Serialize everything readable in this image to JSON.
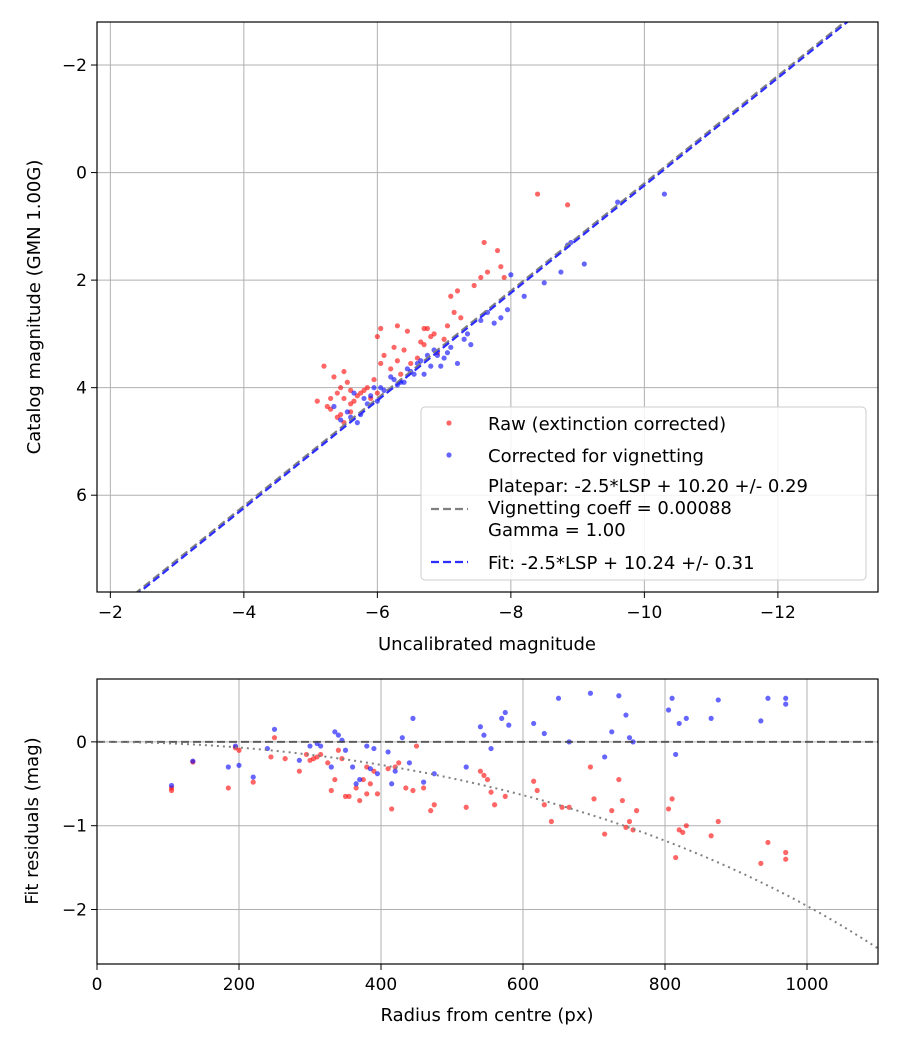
{
  "chart_data": [
    {
      "type": "scatter",
      "xlabel": "Uncalibrated magnitude",
      "ylabel": "Catalog magnitude (GMN 1.00G)",
      "xlim": [
        -1.8,
        -13.5
      ],
      "ylim": [
        7.8,
        -2.8
      ],
      "x_inverted": true,
      "y_inverted": true,
      "xticks": [
        -2,
        -4,
        -6,
        -8,
        -10,
        -12
      ],
      "xtick_labels": [
        "−2",
        "−4",
        "−6",
        "−8",
        "−10",
        "−12"
      ],
      "yticks": [
        -2,
        0,
        2,
        4,
        6
      ],
      "ytick_labels": [
        "−2",
        "0",
        "2",
        "4",
        "6"
      ],
      "grid": true,
      "legend_position": "lower-right",
      "series": [
        {
          "name": "Raw (extinction corrected)",
          "kind": "scatter",
          "color": "#ff0000",
          "x": [
            -5.1,
            -5.2,
            -5.25,
            -5.3,
            -5.35,
            -5.4,
            -5.45,
            -5.5,
            -5.55,
            -5.6,
            -5.3,
            -5.45,
            -5.6,
            -5.7,
            -5.8,
            -5.9,
            -6.0,
            -5.5,
            -5.65,
            -5.75,
            -5.85,
            -5.95,
            -6.05,
            -6.1,
            -6.2,
            -6.3,
            -6.35,
            -6.4,
            -6.5,
            -6.6,
            -6.7,
            -6.8,
            -6.9,
            -7.0,
            -6.05,
            -6.25,
            -6.45,
            -6.65,
            -6.75,
            -6.85,
            -7.05,
            -7.15,
            -7.25,
            -7.45,
            -7.55,
            -7.6,
            -7.65,
            -7.8,
            -7.85,
            -8.4,
            -8.85,
            -7.9,
            -7.1,
            -7.2,
            -6.0,
            -5.5,
            -5.4,
            -5.6,
            -6.3,
            -6.7
          ],
          "y": [
            4.25,
            3.6,
            4.35,
            4.2,
            3.8,
            4.1,
            4.0,
            4.2,
            3.9,
            4.05,
            4.4,
            4.5,
            4.3,
            4.15,
            4.05,
            4.2,
            4.1,
            3.7,
            4.25,
            4.1,
            4.0,
            3.85,
            3.55,
            3.4,
            3.65,
            3.5,
            3.75,
            3.3,
            3.55,
            3.45,
            3.2,
            3.05,
            3.35,
            3.1,
            2.9,
            3.25,
            2.95,
            3.15,
            2.9,
            3.0,
            2.85,
            2.6,
            2.7,
            2.1,
            1.95,
            1.3,
            1.85,
            1.45,
            1.75,
            0.4,
            0.6,
            1.95,
            2.3,
            2.2,
            3.05,
            4.65,
            4.55,
            4.45,
            2.85,
            2.9
          ]
        },
        {
          "name": "Corrected for vignetting",
          "kind": "scatter",
          "color": "#0000ff",
          "x": [
            -5.35,
            -5.45,
            -5.55,
            -5.65,
            -5.7,
            -5.75,
            -5.8,
            -5.85,
            -5.9,
            -5.95,
            -6.0,
            -6.1,
            -6.2,
            -6.3,
            -6.4,
            -6.5,
            -6.6,
            -6.7,
            -6.8,
            -6.9,
            -7.0,
            -7.1,
            -7.2,
            -7.3,
            -7.4,
            -7.55,
            -7.65,
            -7.75,
            -7.85,
            -8.0,
            -8.2,
            -8.5,
            -8.75,
            -8.9,
            -9.1,
            -9.6,
            -10.3,
            -6.25,
            -6.45,
            -6.65,
            -6.85,
            -7.05,
            -5.6,
            -6.05,
            -6.35,
            -6.55,
            -6.75,
            -6.95,
            -7.35,
            -7.95,
            -8.85
          ],
          "y": [
            4.35,
            4.6,
            4.45,
            4.1,
            4.65,
            4.5,
            4.2,
            4.3,
            4.15,
            4.0,
            4.25,
            4.05,
            3.8,
            3.95,
            3.9,
            3.7,
            3.55,
            3.75,
            3.6,
            3.4,
            3.45,
            3.25,
            3.55,
            3.1,
            3.2,
            2.75,
            2.6,
            2.8,
            2.7,
            1.9,
            2.3,
            2.05,
            1.85,
            1.3,
            1.7,
            0.55,
            0.4,
            3.85,
            3.65,
            3.5,
            3.3,
            3.35,
            4.55,
            4.0,
            3.9,
            3.75,
            3.4,
            3.6,
            3.0,
            2.55,
            1.35
          ]
        },
        {
          "name": "Platepar: -2.5*LSP + 10.20 +/- 0.29\nVignetting coeff = 0.00088\nGamma = 1.00",
          "kind": "line",
          "color": "#808080",
          "dashed": true,
          "slope": -2.5,
          "intercept": 10.2
        },
        {
          "name": "Fit: -2.5*LSP + 10.24 +/- 0.31",
          "kind": "line",
          "color": "#2d2dff",
          "dashed": true,
          "slope": -2.5,
          "intercept": 10.24
        }
      ]
    },
    {
      "type": "scatter",
      "xlabel": "Radius from centre (px)",
      "ylabel": "Fit residuals (mag)",
      "xlim": [
        0,
        1100
      ],
      "ylim": [
        -2.65,
        0.75
      ],
      "xticks": [
        0,
        200,
        400,
        600,
        800,
        1000
      ],
      "xtick_labels": [
        "0",
        "200",
        "400",
        "600",
        "800",
        "1000"
      ],
      "yticks": [
        0,
        -1,
        -2
      ],
      "ytick_labels": [
        "0",
        "−1",
        "−2"
      ],
      "grid": true,
      "series": [
        {
          "kind": "scatter",
          "color": "#ff0000",
          "x": [
            105,
            105,
            135,
            185,
            195,
            200,
            220,
            245,
            250,
            285,
            300,
            305,
            310,
            315,
            325,
            330,
            335,
            340,
            345,
            350,
            365,
            370,
            375,
            380,
            385,
            390,
            395,
            410,
            415,
            420,
            425,
            435,
            445,
            450,
            460,
            470,
            475,
            520,
            540,
            545,
            550,
            555,
            560,
            575,
            615,
            620,
            630,
            640,
            655,
            665,
            695,
            700,
            715,
            725,
            735,
            740,
            745,
            750,
            755,
            760,
            805,
            810,
            815,
            820,
            825,
            830,
            865,
            875,
            935,
            945,
            970,
            970,
            265,
            295,
            355,
            380
          ],
          "y": [
            -0.55,
            -0.58,
            -0.24,
            -0.55,
            -0.07,
            -0.1,
            -0.48,
            -0.18,
            0.05,
            -0.35,
            -0.22,
            -0.2,
            -0.18,
            -0.15,
            -0.25,
            -0.58,
            -0.45,
            -0.1,
            -0.2,
            -0.65,
            -0.55,
            -0.7,
            -0.45,
            -0.62,
            -0.5,
            -0.35,
            -0.62,
            -0.32,
            -0.8,
            -0.3,
            -0.25,
            -0.55,
            -0.58,
            -0.05,
            -0.55,
            -0.82,
            -0.75,
            -0.78,
            -0.35,
            -0.4,
            -0.45,
            -0.6,
            -0.75,
            -0.65,
            -0.47,
            -0.58,
            -0.75,
            -0.95,
            -0.78,
            -0.78,
            -0.3,
            -0.68,
            -1.1,
            -0.82,
            -0.45,
            -0.7,
            -1.02,
            -0.95,
            -1.05,
            -0.82,
            -0.8,
            -0.68,
            -1.38,
            -1.05,
            -1.08,
            -1.0,
            -1.12,
            -0.95,
            -1.45,
            -1.2,
            -1.32,
            -1.4,
            -0.2,
            -0.15,
            -0.65,
            -0.3
          ]
        },
        {
          "kind": "scatter",
          "color": "#0000ff",
          "x": [
            105,
            135,
            185,
            195,
            200,
            220,
            240,
            250,
            285,
            300,
            310,
            315,
            330,
            335,
            340,
            345,
            350,
            360,
            365,
            370,
            380,
            385,
            390,
            395,
            410,
            415,
            420,
            430,
            440,
            445,
            460,
            475,
            520,
            540,
            545,
            555,
            570,
            575,
            580,
            615,
            630,
            650,
            665,
            695,
            715,
            725,
            735,
            745,
            750,
            755,
            805,
            810,
            815,
            820,
            830,
            865,
            875,
            935,
            945,
            970,
            970
          ],
          "y": [
            -0.52,
            -0.23,
            -0.3,
            -0.05,
            -0.28,
            -0.42,
            -0.08,
            0.15,
            -0.22,
            -0.05,
            -0.02,
            -0.05,
            -0.3,
            0.12,
            0.08,
            0.02,
            -0.1,
            -0.3,
            -0.5,
            -0.45,
            -0.05,
            -0.32,
            -0.08,
            -0.38,
            -0.12,
            -0.5,
            -0.35,
            0.05,
            -0.25,
            0.28,
            -0.48,
            -0.38,
            -0.3,
            0.18,
            0.08,
            -0.08,
            0.28,
            0.35,
            0.2,
            0.22,
            0.1,
            0.52,
            0.0,
            0.58,
            -0.18,
            0.12,
            0.55,
            0.32,
            0.05,
            0.0,
            0.38,
            0.52,
            -0.15,
            0.22,
            0.28,
            0.28,
            0.5,
            0.25,
            0.52,
            0.45,
            0.52
          ]
        },
        {
          "kind": "line",
          "color": "#404040",
          "dashed": true,
          "constant": 0
        },
        {
          "kind": "curve",
          "color": "#808080",
          "dotted": true,
          "coeff": -0.00088,
          "formula": "2.5*log10(cos(coeff*r)^4)"
        }
      ]
    }
  ]
}
